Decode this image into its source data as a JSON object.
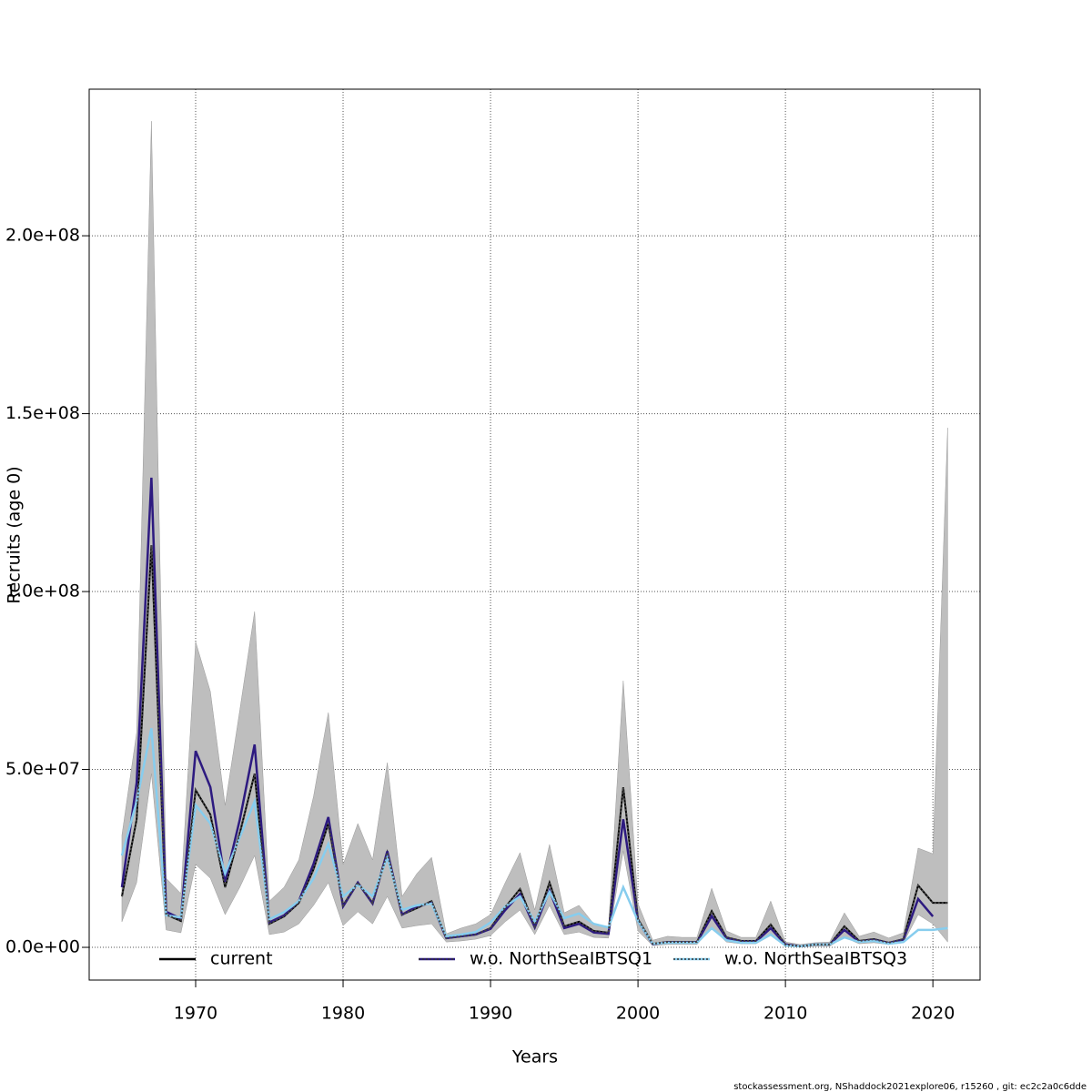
{
  "chart_data": {
    "type": "line",
    "xlabel": "Years",
    "ylabel": "Recruits (age 0)",
    "footer": "stockassessment.org, NShaddock2021explore06, r15260 , git: ec2c2a0c6dde",
    "x": [
      1965,
      1966,
      1967,
      1968,
      1969,
      1970,
      1971,
      1972,
      1973,
      1974,
      1975,
      1976,
      1977,
      1978,
      1979,
      1980,
      1981,
      1982,
      1983,
      1984,
      1985,
      1986,
      1987,
      1988,
      1989,
      1990,
      1991,
      1992,
      1993,
      1994,
      1995,
      1996,
      1997,
      1998,
      1999,
      2000,
      2001,
      2002,
      2003,
      2004,
      2005,
      2006,
      2007,
      2008,
      2009,
      2010,
      2011,
      2012,
      2013,
      2014,
      2015,
      2016,
      2017,
      2018,
      2019,
      2020,
      2021
    ],
    "band": {
      "color": "#bebebe",
      "upper": [
        31500000.0,
        60400000.0,
        232200000.0,
        19400000.0,
        15100000.0,
        85900000.0,
        71900000.0,
        39900000.0,
        66800000.0,
        94400000.0,
        13000000.0,
        16900000.0,
        24600000.0,
        42500000.0,
        66000000.0,
        23300000.0,
        34800000.0,
        24600000.0,
        51900000.0,
        14300000.0,
        20700000.0,
        25300000.0,
        3800000.0,
        5400000.0,
        6600000.0,
        9200000.0,
        18200000.0,
        26600000.0,
        10500000.0,
        28900000.0,
        9700000.0,
        11800000.0,
        6600000.0,
        5400000.0,
        74900000.0,
        12300000.0,
        2000000.0,
        3100000.0,
        2800000.0,
        2800000.0,
        16600000.0,
        4600000.0,
        2800000.0,
        2800000.0,
        13000000.0,
        1500000.0,
        800000.0,
        1300000.0,
        1500000.0,
        9700000.0,
        3100000.0,
        4300000.0,
        2600000.0,
        4100000.0,
        27900000.0,
        26300000.0,
        146000000.0
      ],
      "lower": [
        7200000.0,
        18200000.0,
        48800000.0,
        4900000.0,
        4100000.0,
        23300000.0,
        19400000.0,
        9200000.0,
        16900000.0,
        25800000.0,
        3600000.0,
        4300000.0,
        6600000.0,
        11800000.0,
        18200000.0,
        6100000.0,
        10000000.0,
        6600000.0,
        14300000.0,
        5400000.0,
        6100000.0,
        6600000.0,
        1500000.0,
        1800000.0,
        2300000.0,
        3300000.0,
        7200000.0,
        10500000.0,
        3600000.0,
        11800000.0,
        3600000.0,
        4300000.0,
        2800000.0,
        2600000.0,
        27100000.0,
        4600000.0,
        500000.0,
        800000.0,
        800000.0,
        800000.0,
        5400000.0,
        1500000.0,
        1000000.0,
        1000000.0,
        3300000.0,
        300000.0,
        100000.0,
        300000.0,
        300000.0,
        2800000.0,
        1000000.0,
        1300000.0,
        800000.0,
        1300000.0,
        9200000.0,
        6600000.0,
        1500000.0
      ]
    },
    "series": [
      {
        "name": "current",
        "color": "#000000",
        "values": [
          14300000.0,
          36000000.0,
          113000000.0,
          9200000.0,
          7400000.0,
          44200000.0,
          37300000.0,
          16900000.0,
          32200000.0,
          48800000.0,
          6600000.0,
          8700000.0,
          12500000.0,
          22000000.0,
          34800000.0,
          11800000.0,
          18200000.0,
          12500000.0,
          26600000.0,
          9200000.0,
          11000000.0,
          13000000.0,
          2600000.0,
          3100000.0,
          3600000.0,
          5400000.0,
          11300000.0,
          16400000.0,
          5900000.0,
          18200000.0,
          5900000.0,
          7200000.0,
          4600000.0,
          4100000.0,
          45000000.0,
          7900000.0,
          1000000.0,
          1500000.0,
          1500000.0,
          1500000.0,
          10200000.0,
          2800000.0,
          1800000.0,
          1800000.0,
          6400000.0,
          800000.0,
          300000.0,
          800000.0,
          800000.0,
          5900000.0,
          1800000.0,
          2300000.0,
          1300000.0,
          2300000.0,
          17400000.0,
          12500000.0,
          12500000.0
        ]
      },
      {
        "name": "w.o. NorthSeaIBTSQ1",
        "color": "#2d1a80",
        "values": [
          16900000.0,
          46300000.0,
          132000000.0,
          10000000.0,
          8000000.0,
          55200000.0,
          45000000.0,
          18500000.0,
          36000000.0,
          57000000.0,
          7000000.0,
          9000000.0,
          13000000.0,
          23500000.0,
          36600000.0,
          11500000.0,
          18200000.0,
          12300000.0,
          27000000.0,
          9200000.0,
          11500000.0,
          12500000.0,
          2600000.0,
          3100000.0,
          3600000.0,
          5200000.0,
          10500000.0,
          15000000.0,
          5600000.0,
          16000000.0,
          5400000.0,
          6600000.0,
          4200000.0,
          3800000.0,
          36000000.0,
          7400000.0,
          900000.0,
          1400000.0,
          1400000.0,
          1400000.0,
          8800000.0,
          2600000.0,
          1600000.0,
          1600000.0,
          5400000.0,
          800000.0,
          300000.0,
          800000.0,
          800000.0,
          4900000.0,
          1600000.0,
          2100000.0,
          1200000.0,
          2100000.0,
          13600000.0,
          8700000.0,
          null
        ]
      },
      {
        "name": "w.o. NorthSeaIBTSQ3",
        "color": "#87cdee",
        "values": [
          25800000.0,
          41000000.0,
          61600000.0,
          9000000.0,
          8400000.0,
          40000000.0,
          34800000.0,
          20700000.0,
          31000000.0,
          41000000.0,
          7900000.0,
          9900000.0,
          13000000.0,
          19400000.0,
          29000000.0,
          14300000.0,
          17600000.0,
          14300000.0,
          25300000.0,
          10500000.0,
          11800000.0,
          12300000.0,
          3100000.0,
          3600000.0,
          4300000.0,
          7000000.0,
          11500000.0,
          14300000.0,
          7200000.0,
          15600000.0,
          8200000.0,
          9500000.0,
          6600000.0,
          5600000.0,
          16900000.0,
          7400000.0,
          1000000.0,
          1300000.0,
          1300000.0,
          1300000.0,
          5400000.0,
          2000000.0,
          1300000.0,
          1300000.0,
          3600000.0,
          500000.0,
          300000.0,
          800000.0,
          800000.0,
          2800000.0,
          1500000.0,
          1800000.0,
          1000000.0,
          1500000.0,
          4900000.0,
          4900000.0,
          5400000.0
        ]
      }
    ],
    "xlim": [
      1962.78,
      2023.2
    ],
    "ylim": [
      -9200000.0,
      241200000.0
    ],
    "xticks": [
      1970,
      1980,
      1990,
      2000,
      2010,
      2020
    ],
    "yticks": [
      {
        "value": 0,
        "label": "0.0e+00"
      },
      {
        "value": 50000000,
        "label": "5.0e+07"
      },
      {
        "value": 100000000,
        "label": "1.0e+08"
      },
      {
        "value": 150000000,
        "label": "1.5e+08"
      },
      {
        "value": 200000000,
        "label": "2.0e+08"
      }
    ],
    "grid": true,
    "legend": "bottom"
  }
}
